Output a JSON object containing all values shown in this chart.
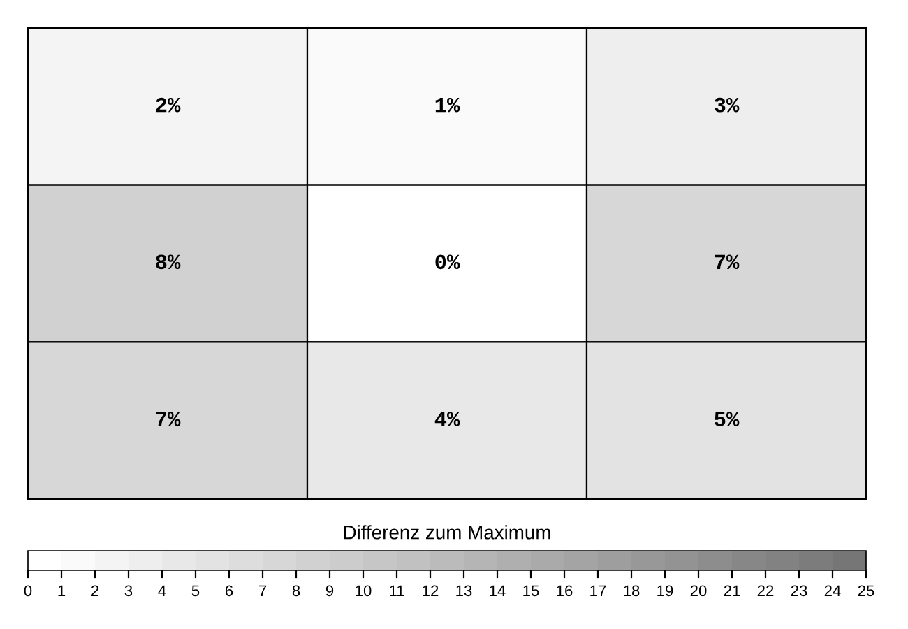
{
  "chart_data": {
    "type": "heatmap",
    "categories": [
      null,
      null,
      null
    ],
    "y_categories": [
      null,
      null,
      null
    ],
    "cells": [
      [
        2,
        1,
        3
      ],
      [
        8,
        0,
        7
      ],
      [
        7,
        4,
        5
      ]
    ],
    "cell_labels": [
      [
        "2%",
        "1%",
        "3%"
      ],
      [
        "8%",
        "0%",
        "7%"
      ],
      [
        "7%",
        "4%",
        "5%"
      ]
    ],
    "clabel": "Differenz zum Maximum",
    "clim": [
      0,
      25
    ],
    "cticks": [
      0,
      1,
      2,
      3,
      4,
      5,
      6,
      7,
      8,
      9,
      10,
      11,
      12,
      13,
      14,
      15,
      16,
      17,
      18,
      19,
      20,
      21,
      22,
      23,
      24,
      25
    ]
  }
}
